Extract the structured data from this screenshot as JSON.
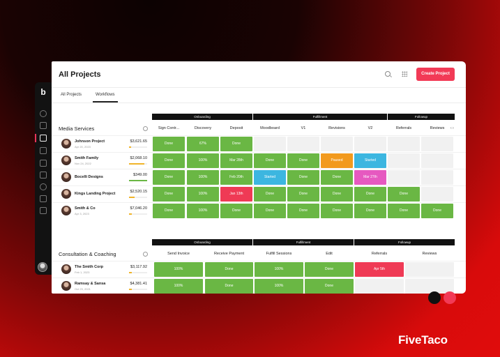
{
  "header": {
    "title": "All Projects",
    "create_label": "Create Project"
  },
  "tabs": [
    "All Projects",
    "Workflows"
  ],
  "media": {
    "title": "Media Services",
    "phases": [
      "Onboarding",
      "Fulfillment",
      "Followup"
    ],
    "columns": [
      "Sign Contr...",
      "Discovery",
      "Deposit",
      "Moodboard",
      "V1",
      "Revisions",
      "V2",
      "Referrals",
      "Reviews"
    ],
    "rows": [
      {
        "name": "Johnson Project",
        "date": "Apr 20, 2023",
        "amount": "$3,621.65",
        "progress": 0.1,
        "bar_color": "#f0b429",
        "cells": [
          [
            "Done",
            "#6ab744"
          ],
          [
            "67%",
            "#6ab744"
          ],
          [
            "Done",
            "#6ab744"
          ],
          [
            "",
            ""
          ],
          [
            "",
            ""
          ],
          [
            "",
            ""
          ],
          [
            "",
            ""
          ],
          [
            "",
            ""
          ],
          [
            "",
            ""
          ]
        ]
      },
      {
        "name": "Smith Family",
        "date": "Nov 24, 2022",
        "amount": "$2,068.10",
        "progress": 0.85,
        "bar_color": "#f0b429",
        "cells": [
          [
            "Done",
            "#6ab744"
          ],
          [
            "100%",
            "#6ab744"
          ],
          [
            "Mar 28th",
            "#6ab744"
          ],
          [
            "Done",
            "#6ab744"
          ],
          [
            "Done",
            "#6ab744"
          ],
          [
            "Paused",
            "#f29a1e"
          ],
          [
            "Started",
            "#3cb6e0"
          ],
          [
            "",
            ""
          ],
          [
            "",
            ""
          ]
        ]
      },
      {
        "name": "Bocelli Designs",
        "date": "",
        "amount": "$349.00",
        "progress": 1.0,
        "bar_color": "#6ab744",
        "cells": [
          [
            "Done",
            "#6ab744"
          ],
          [
            "100%",
            "#6ab744"
          ],
          [
            "Feb 20th",
            "#6ab744"
          ],
          [
            "Started",
            "#3cb6e0"
          ],
          [
            "Done",
            "#6ab744"
          ],
          [
            "Done",
            "#6ab744"
          ],
          [
            "Mar 27th",
            "#e659c0"
          ],
          [
            "",
            ""
          ],
          [
            "",
            ""
          ]
        ]
      },
      {
        "name": "Kings Landing Project",
        "date": "",
        "amount": "$2,520.15",
        "progress": 0.3,
        "bar_color": "#f0b429",
        "cells": [
          [
            "Done",
            "#6ab744"
          ],
          [
            "100%",
            "#6ab744"
          ],
          [
            "Jan 13th",
            "#ef3a55"
          ],
          [
            "Done",
            "#6ab744"
          ],
          [
            "Done",
            "#6ab744"
          ],
          [
            "Done",
            "#6ab744"
          ],
          [
            "Done",
            "#6ab744"
          ],
          [
            "Done",
            "#6ab744"
          ],
          [
            "",
            ""
          ]
        ]
      },
      {
        "name": "Smith & Co",
        "date": "Apr 3, 2023",
        "amount": "$7,046.20",
        "progress": 0.15,
        "bar_color": "#f0b429",
        "cells": [
          [
            "Done",
            "#6ab744"
          ],
          [
            "100%",
            "#6ab744"
          ],
          [
            "Done",
            "#6ab744"
          ],
          [
            "Done",
            "#6ab744"
          ],
          [
            "Done",
            "#6ab744"
          ],
          [
            "Done",
            "#6ab744"
          ],
          [
            "Done",
            "#6ab744"
          ],
          [
            "Done",
            "#6ab744"
          ],
          [
            "Done",
            "#6ab744"
          ]
        ]
      }
    ]
  },
  "consulting": {
    "title": "Consultation & Coaching",
    "phases": [
      "Onboarding",
      "Fulfillment",
      "Followup"
    ],
    "columns": [
      "Send Invoice",
      "Receive Payment",
      "Fulfill Sessions",
      "Edit",
      "Referrals",
      "Reviews"
    ],
    "rows": [
      {
        "name": "The Smith Corp",
        "date": "Feb 1, 2023",
        "amount": "$3,117.92",
        "progress": 0.15,
        "bar_color": "#f0b429",
        "cells": [
          [
            "100%",
            "#6ab744"
          ],
          [
            "Done",
            "#6ab744"
          ],
          [
            "100%",
            "#6ab744"
          ],
          [
            "Done",
            "#6ab744"
          ],
          [
            "Apr 5th",
            "#ef3a55"
          ],
          [
            "",
            ""
          ]
        ]
      },
      {
        "name": "Ramsay & Sansa",
        "date": "Oct 23, 2021",
        "amount": "$4,381.41",
        "progress": 0.15,
        "bar_color": "#f0b429",
        "cells": [
          [
            "100%",
            "#6ab744"
          ],
          [
            "Done",
            "#6ab744"
          ],
          [
            "100%",
            "#6ab744"
          ],
          [
            "Done",
            "#6ab744"
          ],
          [
            "",
            ""
          ],
          [
            "",
            ""
          ]
        ]
      }
    ]
  },
  "brand": "FiveTaco",
  "icons": {
    "sidebar": [
      "clock-icon",
      "filter-icon",
      "projects-icon",
      "chat-icon",
      "inbox-icon",
      "document-icon",
      "people-icon",
      "calendar-icon",
      "grid-icon"
    ]
  }
}
